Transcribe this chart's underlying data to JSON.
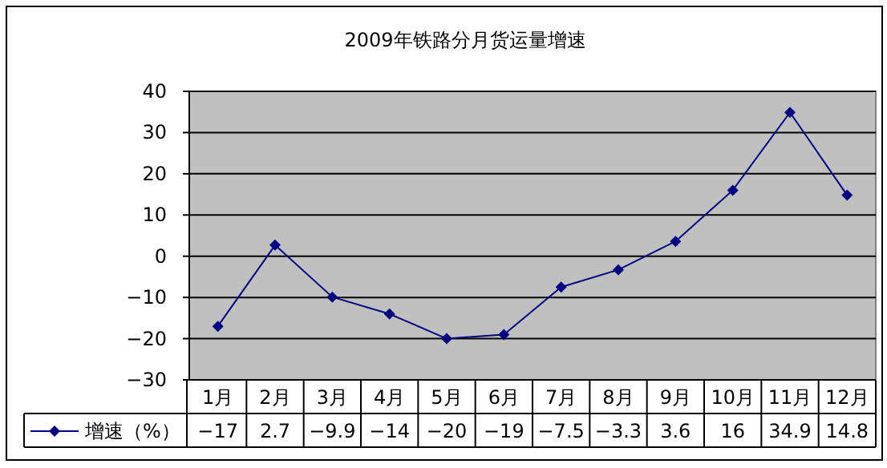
{
  "chart_data": {
    "type": "line",
    "title": "2009年铁路分月货运量增速",
    "categories": [
      "1月",
      "2月",
      "3月",
      "4月",
      "5月",
      "6月",
      "7月",
      "8月",
      "9月",
      "10月",
      "11月",
      "12月"
    ],
    "series": [
      {
        "name": "增速（%）",
        "color": "#000080",
        "values": [
          -17,
          2.7,
          -9.9,
          -14,
          -20,
          -19,
          -7.5,
          -3.3,
          3.6,
          16,
          34.9,
          14.8
        ]
      }
    ],
    "ylim": [
      -30,
      40
    ],
    "yticks": [
      -30,
      -20,
      -10,
      0,
      10,
      20,
      30,
      40
    ],
    "grid": "y",
    "legend": "bottom left",
    "marker": "diamond",
    "data_labels": true
  }
}
